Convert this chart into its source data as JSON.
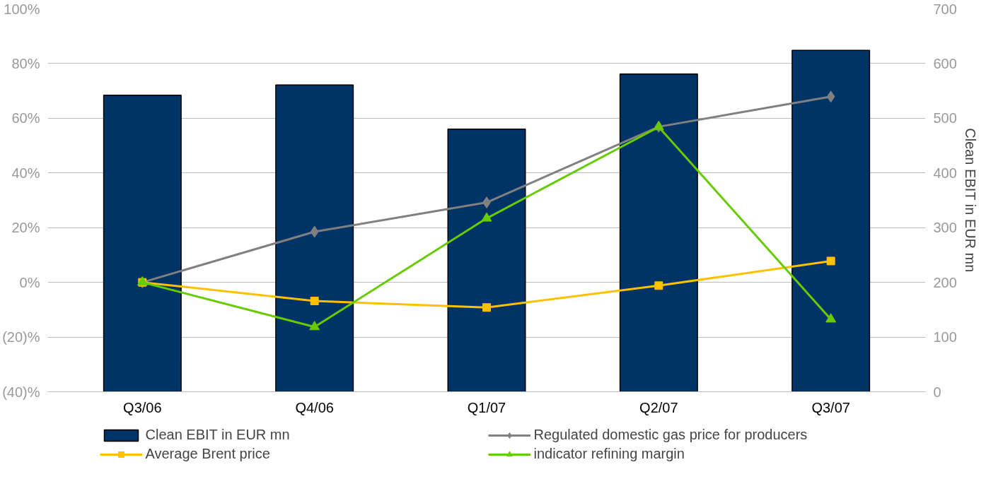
{
  "chart_data": {
    "type": "bar",
    "categories": [
      "Q3/06",
      "Q4/06",
      "Q1/07",
      "Q2/07",
      "Q3/07"
    ],
    "y2label": "Clean EBIT in EUR mn",
    "series": [
      {
        "name": "Clean EBIT in EUR mn",
        "axis": "y2",
        "color": "#003366",
        "values": [
          542,
          561,
          480,
          581,
          624
        ]
      },
      {
        "name": "Regulated domestic gas price for producers",
        "type": "line",
        "marker": "diamond",
        "color": "#808080",
        "values": [
          0,
          18.5,
          29.2,
          56.9,
          67.9
        ]
      },
      {
        "name": "Average Brent price",
        "type": "line",
        "marker": "square",
        "color": "#ffc000",
        "values": [
          0,
          -6.8,
          -9.2,
          -1.2,
          7.8
        ]
      },
      {
        "name": "indicator refining margin",
        "type": "line",
        "marker": "triangle",
        "color": "#66cc00",
        "values": [
          0,
          -16.3,
          23.4,
          56.8,
          -13.5
        ]
      }
    ],
    "ylim": [
      -40,
      100
    ],
    "yticks": [
      {
        "value": -40,
        "label": "(40)%"
      },
      {
        "value": -20,
        "label": "(20)%"
      },
      {
        "value": 0,
        "label": "0%"
      },
      {
        "value": 20,
        "label": "20%"
      },
      {
        "value": 40,
        "label": "40%"
      },
      {
        "value": 60,
        "label": "60%"
      },
      {
        "value": 80,
        "label": "80%"
      },
      {
        "value": 100,
        "label": "100%"
      }
    ],
    "y2lim": [
      0,
      700
    ],
    "y2ticks": [
      0,
      100,
      200,
      300,
      400,
      500,
      600,
      700
    ],
    "grid": "y",
    "legend": "bottom"
  }
}
